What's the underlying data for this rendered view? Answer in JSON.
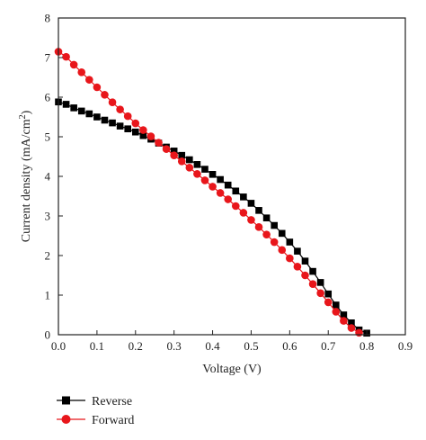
{
  "chart_data": {
    "type": "scatter",
    "title": "",
    "xlabel": "Voltage (V)",
    "ylabel_main": "Current density (mA/cm",
    "ylabel_sup": "2",
    "ylabel_close": ")",
    "xlim": [
      0,
      0.9
    ],
    "ylim": [
      0,
      8
    ],
    "xticks": [
      0.0,
      0.1,
      0.2,
      0.3,
      0.4,
      0.5,
      0.6,
      0.7,
      0.8,
      0.9
    ],
    "xtick_labels": [
      "0.0",
      "0.1",
      "0.2",
      "0.3",
      "0.4",
      "0.5",
      "0.6",
      "0.7",
      "0.8",
      "0.9"
    ],
    "yticks": [
      0,
      1,
      2,
      3,
      4,
      5,
      6,
      7,
      8
    ],
    "ytick_labels": [
      "0",
      "1",
      "2",
      "3",
      "4",
      "5",
      "6",
      "7",
      "8"
    ],
    "grid": false,
    "legend_position": "bottom-left, below plot",
    "series": [
      {
        "name": "Reverse",
        "color": "#000000",
        "marker": "square",
        "points": [
          [
            0.0,
            5.88
          ],
          [
            0.02,
            5.82
          ],
          [
            0.04,
            5.73
          ],
          [
            0.06,
            5.65
          ],
          [
            0.08,
            5.58
          ],
          [
            0.1,
            5.5
          ],
          [
            0.12,
            5.42
          ],
          [
            0.14,
            5.35
          ],
          [
            0.16,
            5.27
          ],
          [
            0.18,
            5.2
          ],
          [
            0.2,
            5.12
          ],
          [
            0.22,
            5.03
          ],
          [
            0.24,
            4.94
          ],
          [
            0.26,
            4.84
          ],
          [
            0.28,
            4.74
          ],
          [
            0.3,
            4.64
          ],
          [
            0.32,
            4.53
          ],
          [
            0.34,
            4.42
          ],
          [
            0.36,
            4.3
          ],
          [
            0.38,
            4.18
          ],
          [
            0.4,
            4.05
          ],
          [
            0.42,
            3.92
          ],
          [
            0.44,
            3.78
          ],
          [
            0.46,
            3.63
          ],
          [
            0.48,
            3.48
          ],
          [
            0.5,
            3.32
          ],
          [
            0.52,
            3.14
          ],
          [
            0.54,
            2.95
          ],
          [
            0.56,
            2.76
          ],
          [
            0.58,
            2.56
          ],
          [
            0.6,
            2.34
          ],
          [
            0.62,
            2.11
          ],
          [
            0.64,
            1.86
          ],
          [
            0.66,
            1.6
          ],
          [
            0.68,
            1.32
          ],
          [
            0.7,
            1.03
          ],
          [
            0.72,
            0.75
          ],
          [
            0.74,
            0.5
          ],
          [
            0.76,
            0.3
          ],
          [
            0.78,
            0.12
          ],
          [
            0.8,
            0.04
          ]
        ]
      },
      {
        "name": "Forward",
        "color": "#e8161b",
        "marker": "circle",
        "points": [
          [
            0.0,
            7.15
          ],
          [
            0.02,
            7.02
          ],
          [
            0.04,
            6.82
          ],
          [
            0.06,
            6.63
          ],
          [
            0.08,
            6.44
          ],
          [
            0.1,
            6.25
          ],
          [
            0.12,
            6.06
          ],
          [
            0.14,
            5.87
          ],
          [
            0.16,
            5.69
          ],
          [
            0.18,
            5.52
          ],
          [
            0.2,
            5.34
          ],
          [
            0.22,
            5.17
          ],
          [
            0.24,
            5.01
          ],
          [
            0.26,
            4.85
          ],
          [
            0.28,
            4.69
          ],
          [
            0.3,
            4.53
          ],
          [
            0.32,
            4.38
          ],
          [
            0.34,
            4.22
          ],
          [
            0.36,
            4.06
          ],
          [
            0.38,
            3.9
          ],
          [
            0.4,
            3.74
          ],
          [
            0.42,
            3.58
          ],
          [
            0.44,
            3.42
          ],
          [
            0.46,
            3.25
          ],
          [
            0.48,
            3.08
          ],
          [
            0.5,
            2.9
          ],
          [
            0.52,
            2.72
          ],
          [
            0.54,
            2.53
          ],
          [
            0.56,
            2.34
          ],
          [
            0.58,
            2.14
          ],
          [
            0.6,
            1.93
          ],
          [
            0.62,
            1.72
          ],
          [
            0.64,
            1.5
          ],
          [
            0.66,
            1.28
          ],
          [
            0.68,
            1.05
          ],
          [
            0.7,
            0.82
          ],
          [
            0.72,
            0.58
          ],
          [
            0.74,
            0.35
          ],
          [
            0.76,
            0.17
          ],
          [
            0.78,
            0.05
          ]
        ]
      }
    ]
  }
}
